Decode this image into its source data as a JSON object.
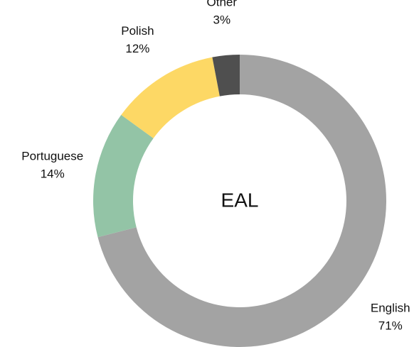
{
  "chart_data": {
    "type": "donut",
    "center_label": "EAL",
    "categories": [
      "English",
      "Portuguese",
      "Polish",
      "Other"
    ],
    "values": [
      71,
      14,
      12,
      3
    ],
    "value_labels": [
      "71%",
      "14%",
      "12%",
      "3%"
    ],
    "colors": [
      "#a3a3a3",
      "#93c4a6",
      "#fdd865",
      "#4f4f4f"
    ]
  }
}
